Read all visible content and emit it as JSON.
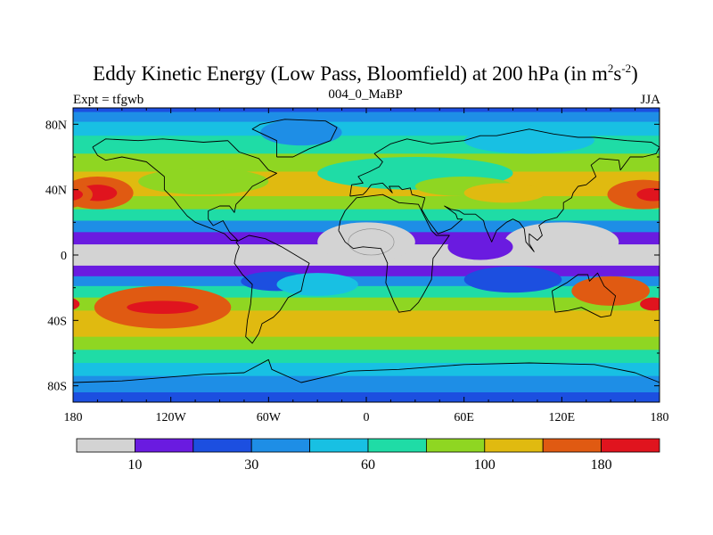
{
  "chart_data": {
    "type": "heatmap",
    "title": {
      "text": "Eddy Kinetic Energy (Low Pass, Bloomfield) at 200 hPa (in m",
      "sup1": "2",
      "mid": "s",
      "sup2": "-2",
      "end": ")"
    },
    "subtitle_left": "Expt = tfgwb",
    "subtitle_center": "004_0_MaBP",
    "subtitle_right": "JJA",
    "x_ticks": [
      {
        "value": -180,
        "label": "180"
      },
      {
        "value": -120,
        "label": "120W"
      },
      {
        "value": -60,
        "label": "60W"
      },
      {
        "value": 0,
        "label": "0"
      },
      {
        "value": 60,
        "label": "60E"
      },
      {
        "value": 120,
        "label": "120E"
      },
      {
        "value": 180,
        "label": "180"
      }
    ],
    "y_ticks": [
      {
        "value": 80,
        "label": "80N"
      },
      {
        "value": 40,
        "label": "40N"
      },
      {
        "value": 0,
        "label": "0"
      },
      {
        "value": -40,
        "label": "40S"
      },
      {
        "value": -80,
        "label": "80S"
      }
    ],
    "xlim": [
      -180,
      180
    ],
    "ylim": [
      -90,
      90
    ],
    "colorbar": {
      "colors": [
        "#d3d3d3",
        "#6a1be0",
        "#1c4fe0",
        "#1e8ee6",
        "#18c0e3",
        "#1fdca6",
        "#8fd622",
        "#e0ba10",
        "#e05a12",
        "#e0141e"
      ],
      "labels": [
        {
          "boundary": 1,
          "label": "10"
        },
        {
          "boundary": 3,
          "label": "30"
        },
        {
          "boundary": 5,
          "label": "60"
        },
        {
          "boundary": 7,
          "label": "100"
        },
        {
          "boundary": 9,
          "label": "180"
        }
      ]
    },
    "field_bands": [
      {
        "lat": 90,
        "level": 3
      },
      {
        "lat": 85,
        "level": 4
      },
      {
        "lat": 78,
        "level": 5
      },
      {
        "lat": 68,
        "level": 6
      },
      {
        "lat": 56,
        "level": 7
      },
      {
        "lat": 46,
        "level": 8
      },
      {
        "lat": 40,
        "level": 8
      },
      {
        "lat": 32,
        "level": 7
      },
      {
        "lat": 24,
        "level": 6
      },
      {
        "lat": 18,
        "level": 4
      },
      {
        "lat": 10,
        "level": 2
      },
      {
        "lat": 3,
        "level": 1
      },
      {
        "lat": -3,
        "level": 1
      },
      {
        "lat": -10,
        "level": 2
      },
      {
        "lat": -16,
        "level": 4
      },
      {
        "lat": -22,
        "level": 6
      },
      {
        "lat": -30,
        "level": 7
      },
      {
        "lat": -38,
        "level": 8
      },
      {
        "lat": -46,
        "level": 8
      },
      {
        "lat": -54,
        "level": 7
      },
      {
        "lat": -62,
        "level": 6
      },
      {
        "lat": -70,
        "level": 5
      },
      {
        "lat": -78,
        "level": 4
      },
      {
        "lat": -90,
        "level": 3
      }
    ],
    "field_features": [
      {
        "lon": -165,
        "lat": 38,
        "rlon": 22,
        "rlat": 10,
        "level": 9
      },
      {
        "lon": -165,
        "lat": 38,
        "rlon": 12,
        "rlat": 5,
        "level": 10
      },
      {
        "lon": 170,
        "lat": 37,
        "rlon": 22,
        "rlat": 9,
        "level": 9
      },
      {
        "lon": 176,
        "lat": 37,
        "rlon": 10,
        "rlat": 4,
        "level": 10
      },
      {
        "lon": -125,
        "lat": -32,
        "rlon": 42,
        "rlat": 13,
        "level": 9
      },
      {
        "lon": -125,
        "lat": -32,
        "rlon": 22,
        "rlat": 4,
        "level": 10
      },
      {
        "lon": 150,
        "lat": -22,
        "rlon": 24,
        "rlat": 9,
        "level": 9
      },
      {
        "lon": 176,
        "lat": -30,
        "rlon": 8,
        "rlat": 4,
        "level": 10
      },
      {
        "lon": -55,
        "lat": -16,
        "rlon": 22,
        "rlat": 6,
        "level": 3
      },
      {
        "lon": 0,
        "lat": 8,
        "rlon": 30,
        "rlat": 12,
        "level": 1
      },
      {
        "lon": 3,
        "lat": 8,
        "rlon": 14,
        "rlat": 8,
        "level": 0
      },
      {
        "lon": 120,
        "lat": 8,
        "rlon": 35,
        "rlat": 12,
        "level": 1
      },
      {
        "lon": 70,
        "lat": 5,
        "rlon": 20,
        "rlat": 8,
        "level": 2
      },
      {
        "lon": 90,
        "lat": -15,
        "rlon": 30,
        "rlat": 8,
        "level": 3
      },
      {
        "lon": -30,
        "lat": -18,
        "rlon": 25,
        "rlat": 7,
        "level": 5
      },
      {
        "lon": 30,
        "lat": 50,
        "rlon": 60,
        "rlat": 10,
        "level": 6
      },
      {
        "lon": 60,
        "lat": 42,
        "rlon": 30,
        "rlat": 6,
        "level": 7
      },
      {
        "lon": 85,
        "lat": 38,
        "rlon": 25,
        "rlat": 6,
        "level": 8
      },
      {
        "lon": -100,
        "lat": 45,
        "rlon": 40,
        "rlat": 8,
        "level": 7
      },
      {
        "lon": -40,
        "lat": 75,
        "rlon": 25,
        "rlat": 8,
        "level": 4
      },
      {
        "lon": 100,
        "lat": 70,
        "rlon": 40,
        "rlat": 8,
        "level": 5
      }
    ],
    "coastlines": [
      {
        "name": "north-america",
        "points": [
          [
            -168,
            66
          ],
          [
            -160,
            71
          ],
          [
            -140,
            70
          ],
          [
            -125,
            71
          ],
          [
            -100,
            69
          ],
          [
            -85,
            70
          ],
          [
            -78,
            63
          ],
          [
            -66,
            59
          ],
          [
            -60,
            52
          ],
          [
            -55,
            50
          ],
          [
            -64,
            45
          ],
          [
            -70,
            42
          ],
          [
            -75,
            36
          ],
          [
            -80,
            31
          ],
          [
            -81,
            26
          ],
          [
            -84,
            30
          ],
          [
            -90,
            30
          ],
          [
            -97,
            27
          ],
          [
            -97,
            22
          ],
          [
            -94,
            18
          ],
          [
            -88,
            21
          ],
          [
            -84,
            14
          ],
          [
            -79,
            9
          ],
          [
            -83,
            9
          ],
          [
            -87,
            13
          ],
          [
            -92,
            15
          ],
          [
            -105,
            20
          ],
          [
            -110,
            24
          ],
          [
            -115,
            30
          ],
          [
            -118,
            34
          ],
          [
            -124,
            40
          ],
          [
            -124,
            48
          ],
          [
            -135,
            57
          ],
          [
            -150,
            60
          ],
          [
            -160,
            58
          ],
          [
            -165,
            61
          ],
          [
            -168,
            66
          ]
        ]
      },
      {
        "name": "greenland",
        "points": [
          [
            -55,
            60
          ],
          [
            -45,
            60
          ],
          [
            -35,
            65
          ],
          [
            -22,
            70
          ],
          [
            -18,
            78
          ],
          [
            -25,
            82
          ],
          [
            -50,
            83
          ],
          [
            -65,
            80
          ],
          [
            -70,
            77
          ],
          [
            -55,
            70
          ],
          [
            -55,
            60
          ]
        ]
      },
      {
        "name": "south-america",
        "points": [
          [
            -80,
            8
          ],
          [
            -72,
            12
          ],
          [
            -62,
            10
          ],
          [
            -52,
            5
          ],
          [
            -35,
            -5
          ],
          [
            -38,
            -13
          ],
          [
            -40,
            -22
          ],
          [
            -48,
            -26
          ],
          [
            -53,
            -34
          ],
          [
            -57,
            -38
          ],
          [
            -64,
            -42
          ],
          [
            -66,
            -48
          ],
          [
            -70,
            -54
          ],
          [
            -74,
            -50
          ],
          [
            -73,
            -40
          ],
          [
            -71,
            -30
          ],
          [
            -70,
            -18
          ],
          [
            -76,
            -12
          ],
          [
            -81,
            -5
          ],
          [
            -80,
            0
          ],
          [
            -78,
            5
          ],
          [
            -80,
            8
          ]
        ]
      },
      {
        "name": "africa",
        "points": [
          [
            -17,
            15
          ],
          [
            -16,
            21
          ],
          [
            -13,
            27
          ],
          [
            -6,
            35
          ],
          [
            10,
            37
          ],
          [
            20,
            32
          ],
          [
            32,
            31
          ],
          [
            34,
            27
          ],
          [
            40,
            15
          ],
          [
            43,
            12
          ],
          [
            51,
            12
          ],
          [
            41,
            -2
          ],
          [
            40,
            -15
          ],
          [
            35,
            -24
          ],
          [
            32,
            -29
          ],
          [
            27,
            -34
          ],
          [
            20,
            -35
          ],
          [
            17,
            -29
          ],
          [
            12,
            -17
          ],
          [
            13,
            -5
          ],
          [
            9,
            4
          ],
          [
            -2,
            5
          ],
          [
            -8,
            4
          ],
          [
            -13,
            8
          ],
          [
            -17,
            15
          ]
        ]
      },
      {
        "name": "eurasia",
        "points": [
          [
            -10,
            36
          ],
          [
            -9,
            43
          ],
          [
            -2,
            44
          ],
          [
            -5,
            48
          ],
          [
            2,
            51
          ],
          [
            8,
            54
          ],
          [
            10,
            57
          ],
          [
            5,
            62
          ],
          [
            15,
            68
          ],
          [
            25,
            71
          ],
          [
            40,
            68
          ],
          [
            50,
            69
          ],
          [
            60,
            70
          ],
          [
            70,
            73
          ],
          [
            80,
            73
          ],
          [
            100,
            77
          ],
          [
            115,
            74
          ],
          [
            130,
            72
          ],
          [
            140,
            72
          ],
          [
            160,
            70
          ],
          [
            175,
            69
          ],
          [
            180,
            66
          ],
          [
            178,
            62
          ],
          [
            170,
            60
          ],
          [
            162,
            60
          ],
          [
            156,
            52
          ],
          [
            155,
            58
          ],
          [
            143,
            59
          ],
          [
            138,
            55
          ],
          [
            141,
            48
          ],
          [
            135,
            43
          ],
          [
            130,
            42
          ],
          [
            127,
            38
          ],
          [
            126,
            35
          ],
          [
            121,
            32
          ],
          [
            121,
            28
          ],
          [
            117,
            23
          ],
          [
            110,
            21
          ],
          [
            106,
            18
          ],
          [
            108,
            12
          ],
          [
            105,
            9
          ],
          [
            100,
            13
          ],
          [
            100,
            7
          ],
          [
            103,
            2
          ],
          [
            98,
            8
          ],
          [
            97,
            16
          ],
          [
            94,
            20
          ],
          [
            90,
            22
          ],
          [
            86,
            20
          ],
          [
            80,
            15
          ],
          [
            77,
            8
          ],
          [
            73,
            17
          ],
          [
            72,
            21
          ],
          [
            67,
            25
          ],
          [
            60,
            25
          ],
          [
            57,
            27
          ],
          [
            52,
            28
          ],
          [
            48,
            30
          ],
          [
            55,
            25
          ],
          [
            56,
            22
          ],
          [
            59,
            22
          ],
          [
            52,
            16
          ],
          [
            44,
            13
          ],
          [
            38,
            21
          ],
          [
            34,
            28
          ],
          [
            36,
            35
          ],
          [
            28,
            37
          ],
          [
            27,
            41
          ],
          [
            22,
            40
          ],
          [
            20,
            42
          ],
          [
            14,
            42
          ],
          [
            16,
            38
          ],
          [
            10,
            44
          ],
          [
            3,
            43
          ],
          [
            0,
            39
          ],
          [
            -2,
            37
          ],
          [
            -10,
            36
          ]
        ]
      },
      {
        "name": "australia",
        "points": [
          [
            114,
            -22
          ],
          [
            123,
            -17
          ],
          [
            130,
            -12
          ],
          [
            136,
            -12
          ],
          [
            137,
            -16
          ],
          [
            142,
            -11
          ],
          [
            146,
            -19
          ],
          [
            153,
            -25
          ],
          [
            150,
            -37
          ],
          [
            144,
            -38
          ],
          [
            138,
            -35
          ],
          [
            132,
            -32
          ],
          [
            124,
            -34
          ],
          [
            116,
            -35
          ],
          [
            114,
            -22
          ]
        ]
      },
      {
        "name": "antarctica",
        "points": [
          [
            -180,
            -78
          ],
          [
            -150,
            -77
          ],
          [
            -100,
            -73
          ],
          [
            -75,
            -72
          ],
          [
            -60,
            -64
          ],
          [
            -58,
            -70
          ],
          [
            -40,
            -78
          ],
          [
            -10,
            -71
          ],
          [
            20,
            -70
          ],
          [
            60,
            -67
          ],
          [
            100,
            -66
          ],
          [
            140,
            -67
          ],
          [
            165,
            -72
          ],
          [
            180,
            -78
          ]
        ]
      }
    ]
  }
}
